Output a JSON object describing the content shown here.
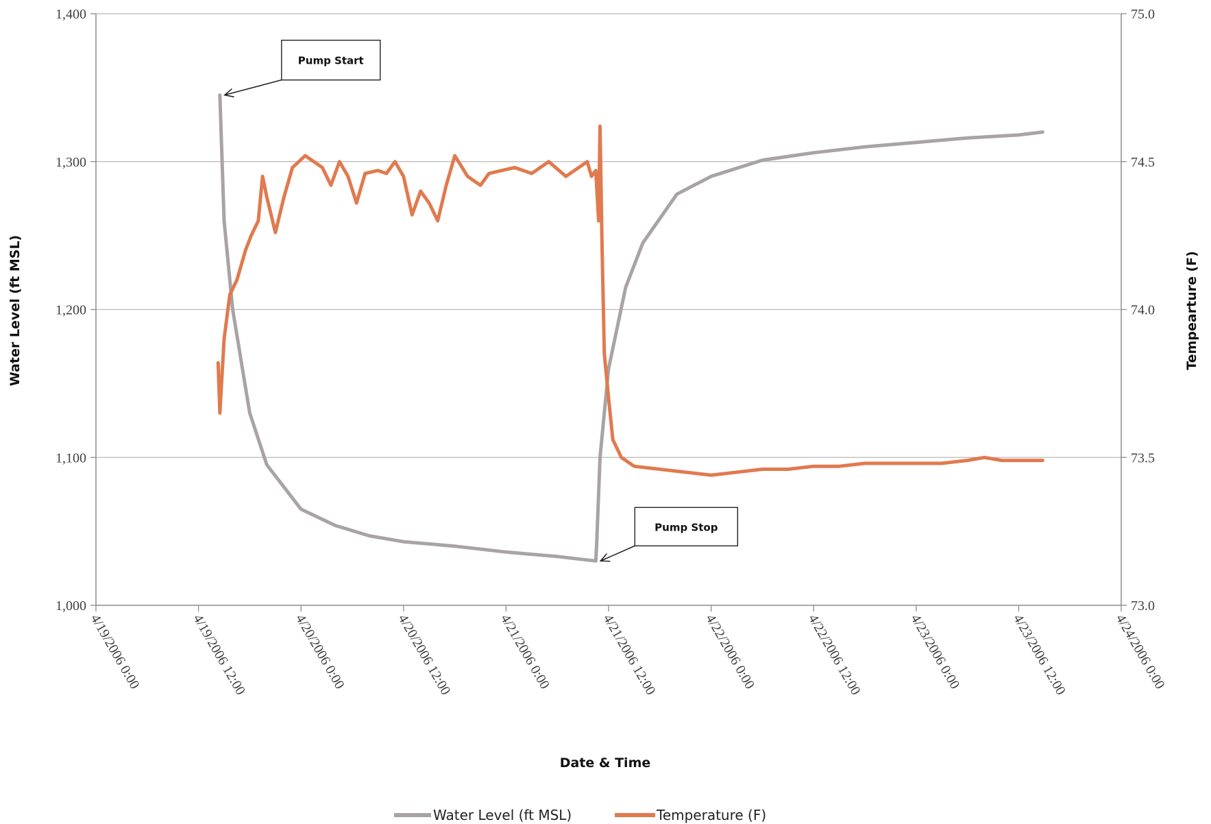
{
  "chart_data": {
    "type": "line",
    "xlabel": "Date & Time",
    "ylabel": "Water Level (ft MSL)",
    "y2label": "Tempearture (F)",
    "x_range": [
      "4/19/2006 0:00",
      "4/24/2006 0:00"
    ],
    "x_ticks": [
      "4/19/2006 0:00",
      "4/19/2006 12:00",
      "4/20/2006 0:00",
      "4/20/2006 12:00",
      "4/21/2006 0:00",
      "4/21/2006 12:00",
      "4/22/2006 0:00",
      "4/22/2006 12:00",
      "4/23/2006 0:00",
      "4/23/2006 12:00",
      "4/24/2006 0:00"
    ],
    "ylim": [
      1000,
      1400
    ],
    "y_ticks": [
      "1,000",
      "1,100",
      "1,200",
      "1,300",
      "1,400"
    ],
    "y2lim": [
      73.0,
      75.0
    ],
    "y2_ticks": [
      "73.0",
      "73.5",
      "74.0",
      "74.5",
      "75.0"
    ],
    "grid": "horizontal",
    "legend": "bottom",
    "series": [
      {
        "name": "Water Level (ft MSL)",
        "axis": "left",
        "color": "#a8a3a6",
        "x": [
          "4/19/2006 14:30",
          "4/19/2006 15:00",
          "4/19/2006 16:00",
          "4/19/2006 18:00",
          "4/19/2006 20:00",
          "4/20/2006 0:00",
          "4/20/2006 4:00",
          "4/20/2006 8:00",
          "4/20/2006 12:00",
          "4/20/2006 18:00",
          "4/21/2006 0:00",
          "4/21/2006 6:00",
          "4/21/2006 10:30",
          "4/21/2006 10:36",
          "4/21/2006 11:00",
          "4/21/2006 12:00",
          "4/21/2006 14:00",
          "4/21/2006 16:00",
          "4/21/2006 20:00",
          "4/22/2006 0:00",
          "4/22/2006 6:00",
          "4/22/2006 12:00",
          "4/22/2006 18:00",
          "4/23/2006 0:00",
          "4/23/2006 6:00",
          "4/23/2006 12:00",
          "4/23/2006 14:48"
        ],
        "values": [
          1345,
          1260,
          1200,
          1130,
          1095,
          1065,
          1054,
          1047,
          1043,
          1040,
          1036,
          1033,
          1030,
          1040,
          1100,
          1160,
          1215,
          1245,
          1278,
          1290,
          1301,
          1306,
          1310,
          1313,
          1316,
          1318,
          1320
        ]
      },
      {
        "name": "Temperature (F)",
        "axis": "right",
        "color": "#e07a4f",
        "x": [
          "4/19/2006 14:18",
          "4/19/2006 14:30",
          "4/19/2006 15:00",
          "4/19/2006 15:40",
          "4/19/2006 16:30",
          "4/19/2006 17:30",
          "4/19/2006 18:10",
          "4/19/2006 19:00",
          "4/19/2006 19:30",
          "4/19/2006 20:00",
          "4/19/2006 20:30",
          "4/19/2006 21:00",
          "4/19/2006 22:00",
          "4/19/2006 23:00",
          "4/20/2006 0:30",
          "4/20/2006 1:30",
          "4/20/2006 2:30",
          "4/20/2006 3:30",
          "4/20/2006 4:30",
          "4/20/2006 5:30",
          "4/20/2006 6:30",
          "4/20/2006 7:30",
          "4/20/2006 9:00",
          "4/20/2006 10:00",
          "4/20/2006 11:00",
          "4/20/2006 12:00",
          "4/20/2006 13:00",
          "4/20/2006 14:00",
          "4/20/2006 15:00",
          "4/20/2006 16:00",
          "4/20/2006 17:00",
          "4/20/2006 18:00",
          "4/20/2006 19:30",
          "4/20/2006 21:00",
          "4/20/2006 22:00",
          "4/20/2006 23:30",
          "4/21/2006 1:00",
          "4/21/2006 3:00",
          "4/21/2006 5:00",
          "4/21/2006 7:00",
          "4/21/2006 8:30",
          "4/21/2006 9:30",
          "4/21/2006 10:00",
          "4/21/2006 10:30",
          "4/21/2006 10:50",
          "4/21/2006 11:00",
          "4/21/2006 11:15",
          "4/21/2006 11:30",
          "4/21/2006 12:00",
          "4/21/2006 12:30",
          "4/21/2006 13:30",
          "4/21/2006 15:00",
          "4/21/2006 18:00",
          "4/21/2006 21:00",
          "4/22/2006 0:00",
          "4/22/2006 3:00",
          "4/22/2006 6:00",
          "4/22/2006 9:00",
          "4/22/2006 12:00",
          "4/22/2006 15:00",
          "4/22/2006 18:00",
          "4/22/2006 21:00",
          "4/23/2006 0:00",
          "4/23/2006 3:00",
          "4/23/2006 6:00",
          "4/23/2006 8:00",
          "4/23/2006 10:00",
          "4/23/2006 12:00",
          "4/23/2006 14:48"
        ],
        "values": [
          73.82,
          73.65,
          73.9,
          74.05,
          74.1,
          74.2,
          74.25,
          74.3,
          74.45,
          74.38,
          74.32,
          74.26,
          74.38,
          74.48,
          74.52,
          74.5,
          74.48,
          74.42,
          74.5,
          74.45,
          74.36,
          74.46,
          74.47,
          74.46,
          74.5,
          74.45,
          74.32,
          74.4,
          74.36,
          74.3,
          74.42,
          74.52,
          74.45,
          74.42,
          74.46,
          74.47,
          74.48,
          74.46,
          74.5,
          74.45,
          74.48,
          74.5,
          74.45,
          74.47,
          74.3,
          74.62,
          74.2,
          73.85,
          73.7,
          73.56,
          73.5,
          73.47,
          73.46,
          73.45,
          73.44,
          73.45,
          73.46,
          73.46,
          73.47,
          73.47,
          73.48,
          73.48,
          73.48,
          73.48,
          73.49,
          73.5,
          73.49,
          73.49,
          73.49
        ]
      }
    ],
    "annotations": [
      {
        "text": "Pump Start",
        "x": "4/19/2006 14:30",
        "value": 1345,
        "axis": "left"
      },
      {
        "text": "Pump Stop",
        "x": "4/21/2006 10:30",
        "value": 1030,
        "axis": "left"
      }
    ]
  }
}
